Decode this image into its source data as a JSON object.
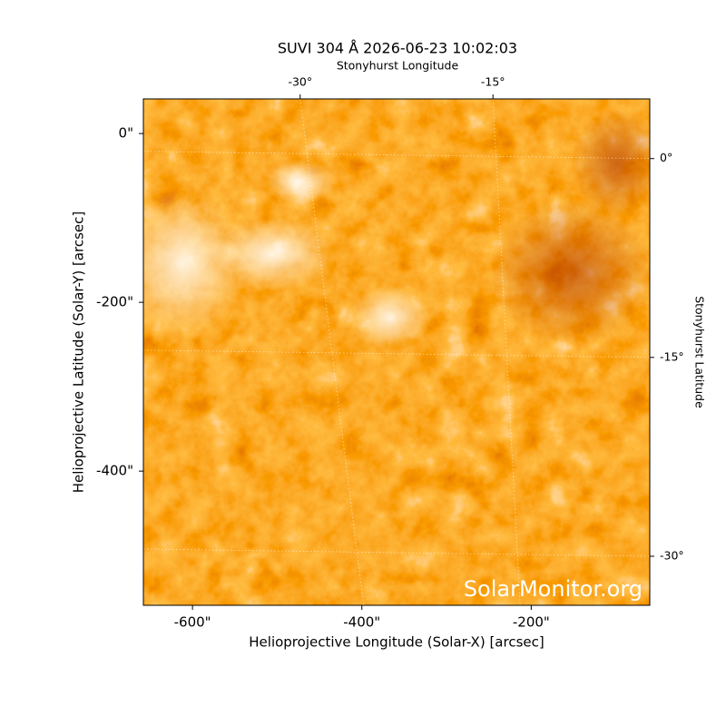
{
  "chart_data": {
    "type": "image",
    "title": "SUVI 304 Å 2026-06-23 10:02:03",
    "xlabel": "Helioprojective Longitude (Solar-X) [arcsec]",
    "ylabel": "Helioprojective Latitude (Solar-Y) [arcsec]",
    "x2label": "Stonyhurst Longitude",
    "y2label": "Stonyhurst Latitude",
    "xlim": [
      -658,
      -60
    ],
    "ylim": [
      -559,
      41
    ],
    "xticks": [
      {
        "value": -600,
        "label": "-600\""
      },
      {
        "value": -400,
        "label": "-400\""
      },
      {
        "value": -200,
        "label": "-200\""
      }
    ],
    "yticks": [
      {
        "value": 0,
        "label": "0\""
      },
      {
        "value": -200,
        "label": "-200\""
      },
      {
        "value": -400,
        "label": "-400\""
      }
    ],
    "x2lim": [
      -42.2,
      -2.8
    ],
    "x2ticks": [
      {
        "value": -30,
        "label": "-30°"
      },
      {
        "value": -15,
        "label": "-15°"
      }
    ],
    "y2lim": [
      -33.7,
      4.5
    ],
    "y2ticks": [
      {
        "value": 0,
        "label": "0°"
      },
      {
        "value": -15,
        "label": "-15°"
      },
      {
        "value": -30,
        "label": "-30°"
      }
    ],
    "watermark": "SolarMonitor.org",
    "grid": true
  }
}
